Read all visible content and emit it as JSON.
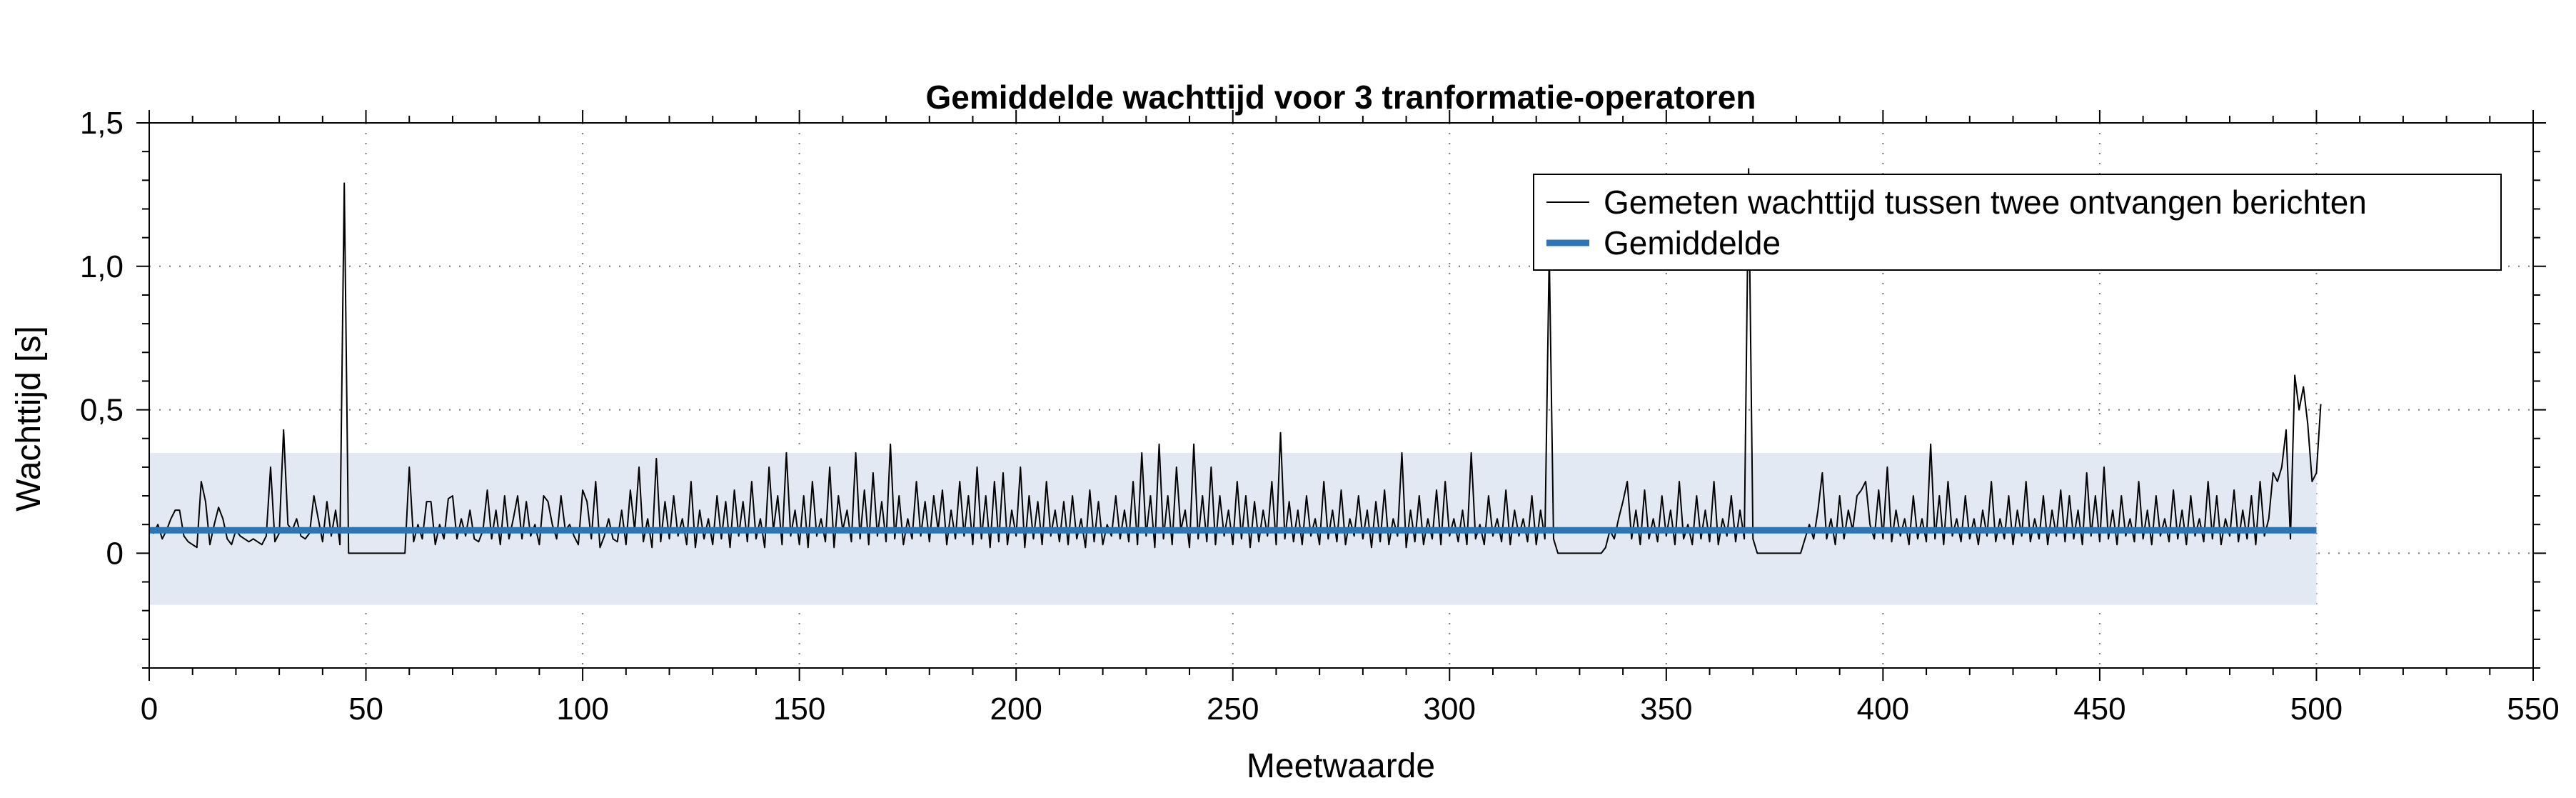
{
  "chart_data": {
    "type": "line",
    "title": "Gemiddelde wachttijd voor 3 tranformatie-operatoren",
    "xlabel": "Meetwaarde",
    "ylabel": "Wachttijd [s]",
    "xlim": [
      0,
      550
    ],
    "ylim": [
      -0.4,
      1.5
    ],
    "x_ticks": [
      0,
      50,
      100,
      150,
      200,
      250,
      300,
      350,
      400,
      450,
      500,
      550
    ],
    "x_tick_labels": [
      "0",
      "50",
      "100",
      "150",
      "200",
      "250",
      "300",
      "350",
      "400",
      "450",
      "500",
      "550"
    ],
    "y_ticks": [
      0,
      0.5,
      1.0,
      1.5
    ],
    "y_tick_labels": [
      "0",
      "0,5",
      "1,0",
      "1,5"
    ],
    "grid": "dotted",
    "legend_position": "top-right",
    "band": {
      "y_low": -0.18,
      "y_high": 0.35,
      "x_start": 0,
      "x_end": 500,
      "color": "#e3e9f3"
    },
    "series": [
      {
        "name": "Gemeten wachttijd tussen twee ontvangen berichten",
        "color": "#000000",
        "style": "thin-line",
        "x_start": 0,
        "x_step": 1,
        "values": [
          0.09,
          0.07,
          0.1,
          0.05,
          0.08,
          0.12,
          0.15,
          0.15,
          0.06,
          0.04,
          0.03,
          0.02,
          0.25,
          0.18,
          0.03,
          0.1,
          0.16,
          0.12,
          0.05,
          0.03,
          0.08,
          0.06,
          0.05,
          0.04,
          0.05,
          0.04,
          0.03,
          0.06,
          0.3,
          0.04,
          0.07,
          0.43,
          0.1,
          0.08,
          0.12,
          0.06,
          0.05,
          0.07,
          0.2,
          0.12,
          0.04,
          0.18,
          0.06,
          0.15,
          0.03,
          1.29,
          0.0,
          0.0,
          0.0,
          0.0,
          0.0,
          0.0,
          0.0,
          0.0,
          0.0,
          0.0,
          0.0,
          0.0,
          0.0,
          0.0,
          0.3,
          0.04,
          0.1,
          0.05,
          0.18,
          0.18,
          0.03,
          0.1,
          0.05,
          0.19,
          0.2,
          0.05,
          0.12,
          0.06,
          0.15,
          0.05,
          0.04,
          0.08,
          0.22,
          0.05,
          0.15,
          0.03,
          0.2,
          0.05,
          0.12,
          0.2,
          0.05,
          0.18,
          0.06,
          0.1,
          0.03,
          0.2,
          0.18,
          0.1,
          0.05,
          0.2,
          0.08,
          0.1,
          0.06,
          0.03,
          0.22,
          0.18,
          0.05,
          0.25,
          0.02,
          0.06,
          0.12,
          0.05,
          0.04,
          0.15,
          0.03,
          0.22,
          0.08,
          0.3,
          0.04,
          0.12,
          0.02,
          0.33,
          0.04,
          0.18,
          0.05,
          0.2,
          0.06,
          0.12,
          0.03,
          0.25,
          0.02,
          0.15,
          0.05,
          0.12,
          0.03,
          0.2,
          0.05,
          0.18,
          0.02,
          0.22,
          0.06,
          0.18,
          0.04,
          0.25,
          0.05,
          0.12,
          0.02,
          0.3,
          0.08,
          0.2,
          0.03,
          0.35,
          0.06,
          0.15,
          0.03,
          0.2,
          0.02,
          0.25,
          0.06,
          0.12,
          0.04,
          0.3,
          0.02,
          0.2,
          0.08,
          0.15,
          0.04,
          0.35,
          0.05,
          0.22,
          0.03,
          0.28,
          0.06,
          0.18,
          0.04,
          0.38,
          0.05,
          0.2,
          0.03,
          0.12,
          0.05,
          0.25,
          0.06,
          0.18,
          0.04,
          0.2,
          0.08,
          0.22,
          0.03,
          0.15,
          0.05,
          0.25,
          0.06,
          0.2,
          0.03,
          0.3,
          0.05,
          0.2,
          0.02,
          0.25,
          0.04,
          0.28,
          0.03,
          0.15,
          0.06,
          0.3,
          0.02,
          0.2,
          0.05,
          0.18,
          0.03,
          0.25,
          0.06,
          0.15,
          0.04,
          0.18,
          0.03,
          0.2,
          0.05,
          0.12,
          0.02,
          0.22,
          0.04,
          0.18,
          0.03,
          0.1,
          0.06,
          0.2,
          0.05,
          0.15,
          0.04,
          0.25,
          0.03,
          0.35,
          0.06,
          0.2,
          0.02,
          0.38,
          0.05,
          0.2,
          0.03,
          0.3,
          0.08,
          0.15,
          0.02,
          0.38,
          0.05,
          0.2,
          0.04,
          0.3,
          0.03,
          0.2,
          0.06,
          0.15,
          0.03,
          0.25,
          0.05,
          0.2,
          0.02,
          0.18,
          0.04,
          0.15,
          0.06,
          0.25,
          0.03,
          0.42,
          0.05,
          0.18,
          0.04,
          0.15,
          0.03,
          0.2,
          0.06,
          0.12,
          0.03,
          0.25,
          0.05,
          0.15,
          0.04,
          0.22,
          0.03,
          0.12,
          0.06,
          0.2,
          0.05,
          0.15,
          0.02,
          0.18,
          0.04,
          0.22,
          0.03,
          0.12,
          0.06,
          0.35,
          0.02,
          0.15,
          0.04,
          0.2,
          0.03,
          0.12,
          0.05,
          0.22,
          0.03,
          0.25,
          0.06,
          0.12,
          0.04,
          0.15,
          0.03,
          0.35,
          0.05,
          0.1,
          0.03,
          0.2,
          0.06,
          0.12,
          0.04,
          0.22,
          0.03,
          0.15,
          0.06,
          0.12,
          0.04,
          0.2,
          0.03,
          0.15,
          0.05,
          1.05,
          0.05,
          0.0,
          0.0,
          0.0,
          0.0,
          0.0,
          0.0,
          0.0,
          0.0,
          0.0,
          0.0,
          0.0,
          0.02,
          0.08,
          0.05,
          0.12,
          0.18,
          0.25,
          0.05,
          0.15,
          0.03,
          0.22,
          0.05,
          0.12,
          0.04,
          0.2,
          0.06,
          0.15,
          0.03,
          0.25,
          0.05,
          0.1,
          0.03,
          0.2,
          0.05,
          0.15,
          0.04,
          0.25,
          0.03,
          0.12,
          0.06,
          0.2,
          0.04,
          0.15,
          0.05,
          1.34,
          0.05,
          0.0,
          0.0,
          0.0,
          0.0,
          0.0,
          0.0,
          0.0,
          0.0,
          0.0,
          0.0,
          0.0,
          0.05,
          0.1,
          0.05,
          0.15,
          0.28,
          0.05,
          0.12,
          0.03,
          0.2,
          0.05,
          0.15,
          0.08,
          0.2,
          0.22,
          0.25,
          0.1,
          0.05,
          0.22,
          0.05,
          0.3,
          0.04,
          0.15,
          0.06,
          0.12,
          0.03,
          0.2,
          0.05,
          0.12,
          0.04,
          0.38,
          0.05,
          0.2,
          0.03,
          0.25,
          0.06,
          0.12,
          0.04,
          0.2,
          0.05,
          0.12,
          0.03,
          0.15,
          0.06,
          0.25,
          0.04,
          0.12,
          0.05,
          0.2,
          0.03,
          0.15,
          0.06,
          0.25,
          0.04,
          0.12,
          0.05,
          0.2,
          0.03,
          0.15,
          0.06,
          0.22,
          0.04,
          0.2,
          0.05,
          0.15,
          0.03,
          0.28,
          0.06,
          0.2,
          0.04,
          0.3,
          0.05,
          0.15,
          0.03,
          0.2,
          0.06,
          0.12,
          0.04,
          0.25,
          0.05,
          0.15,
          0.03,
          0.2,
          0.06,
          0.12,
          0.04,
          0.22,
          0.05,
          0.15,
          0.03,
          0.2,
          0.06,
          0.12,
          0.04,
          0.25,
          0.05,
          0.2,
          0.03,
          0.12,
          0.06,
          0.22,
          0.04,
          0.15,
          0.05,
          0.2,
          0.03,
          0.25,
          0.06,
          0.12,
          0.28,
          0.25,
          0.3,
          0.43,
          0.05,
          0.62,
          0.5,
          0.58,
          0.45,
          0.25,
          0.28,
          0.52
        ]
      },
      {
        "name": "Gemiddelde",
        "color": "#2e75b6",
        "style": "thick-line",
        "x": [
          0,
          500
        ],
        "values": [
          0.08,
          0.08
        ]
      }
    ]
  }
}
